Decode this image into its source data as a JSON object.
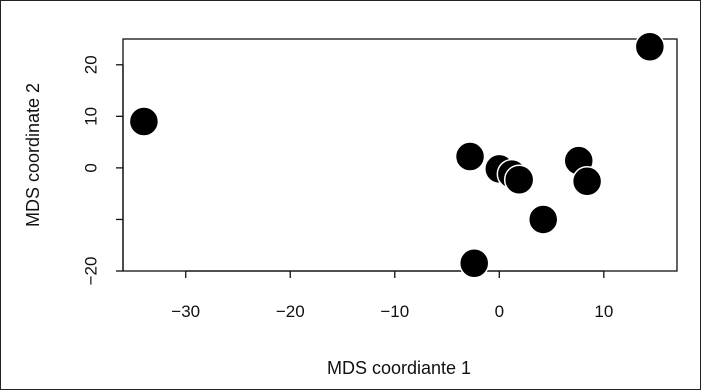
{
  "chart_data": {
    "type": "scatter",
    "title": "",
    "xlabel": "MDS coordiante 1",
    "ylabel": "MDS coordinate 2",
    "xlim": [
      -36,
      17
    ],
    "ylim": [
      -20,
      25
    ],
    "x_ticks": [
      -30,
      -20,
      -10,
      0,
      10
    ],
    "y_ticks": [
      -20,
      -10,
      0,
      10,
      20
    ],
    "x_tick_labels": [
      "−30",
      "−20",
      "−10",
      "0",
      "10"
    ],
    "y_tick_labels": [
      "−20",
      "",
      "0",
      "10",
      "20"
    ],
    "grid": false,
    "legend": "none",
    "point_color": "#000000",
    "points": [
      {
        "x": -34.0,
        "y": 9.0
      },
      {
        "x": -2.8,
        "y": 2.2
      },
      {
        "x": 0.0,
        "y": -0.2
      },
      {
        "x": 1.2,
        "y": -1.2
      },
      {
        "x": 1.9,
        "y": -2.3
      },
      {
        "x": 4.2,
        "y": -10.0
      },
      {
        "x": 7.6,
        "y": 1.4
      },
      {
        "x": 8.4,
        "y": -2.6
      },
      {
        "x": 14.4,
        "y": 23.5
      },
      {
        "x": -2.4,
        "y": -18.5
      }
    ]
  }
}
